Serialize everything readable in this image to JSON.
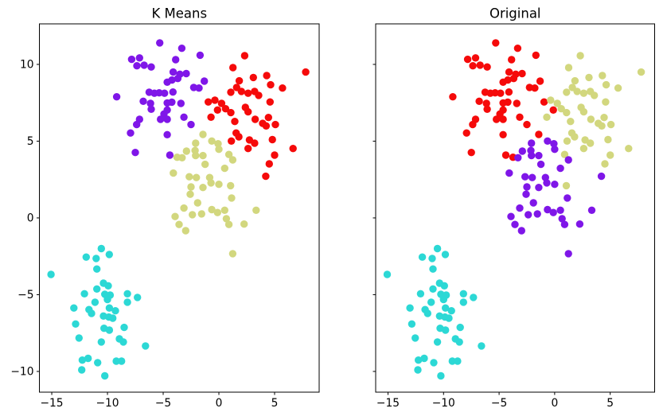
{
  "figure": {
    "background": "#ffffff",
    "axis_color": "#000000"
  },
  "chart_data": {
    "type": "scatter",
    "panels": [
      {
        "id": "kmeans",
        "title": "K Means",
        "color_key": "km",
        "show_y_labels": true
      },
      {
        "id": "original",
        "title": "Original",
        "color_key": "orig",
        "show_y_labels": false
      }
    ],
    "xlim": [
      -16.11,
      9.0
    ],
    "ylim": [
      -11.35,
      12.64
    ],
    "x_ticks": [
      {
        "v": -15,
        "label": "−15"
      },
      {
        "v": -10,
        "label": "−10"
      },
      {
        "v": -5,
        "label": "−5"
      },
      {
        "v": 0,
        "label": "0"
      },
      {
        "v": 5,
        "label": "5"
      }
    ],
    "y_ticks": [
      {
        "v": 10,
        "label": "10"
      },
      {
        "v": 5,
        "label": "5"
      },
      {
        "v": 0,
        "label": "0"
      },
      {
        "v": -5,
        "label": "−5"
      },
      {
        "v": -10,
        "label": "−10"
      }
    ],
    "grid": false,
    "legend": "none",
    "marker_radius": 4.7,
    "cluster_colors": {
      "p": "#7F16E8",
      "r": "#F50A0A",
      "k": "#D2D77E",
      "c": "#2CD8D5"
    },
    "cluster_names": {
      "p": "purple",
      "r": "red",
      "k": "khaki",
      "c": "cyan"
    },
    "points": [
      [
        -5.31,
        11.4,
        "p",
        "r"
      ],
      [
        -3.33,
        11.05,
        "p",
        "r"
      ],
      [
        -1.69,
        10.6,
        "p",
        "r"
      ],
      [
        -3.88,
        10.31,
        "p",
        "r"
      ],
      [
        -7.83,
        10.33,
        "p",
        "r"
      ],
      [
        -7.12,
        10.42,
        "p",
        "r"
      ],
      [
        -6.71,
        9.95,
        "p",
        "r"
      ],
      [
        -7.36,
        9.91,
        "p",
        "r"
      ],
      [
        -6.07,
        9.83,
        "p",
        "r"
      ],
      [
        -4.1,
        9.5,
        "p",
        "r"
      ],
      [
        -3.5,
        9.36,
        "p",
        "r"
      ],
      [
        -2.93,
        9.4,
        "p",
        "r"
      ],
      [
        -4.21,
        8.98,
        "p",
        "r"
      ],
      [
        -3.69,
        9.08,
        "p",
        "r"
      ],
      [
        -4.64,
        8.84,
        "p",
        "r"
      ],
      [
        -1.31,
        8.91,
        "p",
        "r"
      ],
      [
        -2.26,
        8.5,
        "p",
        "r"
      ],
      [
        -1.79,
        8.46,
        "p",
        "r"
      ],
      [
        -9.17,
        7.89,
        "p",
        "r"
      ],
      [
        -6.26,
        8.19,
        "p",
        "r"
      ],
      [
        -5.79,
        8.12,
        "p",
        "r"
      ],
      [
        -5.36,
        8.15,
        "p",
        "r"
      ],
      [
        -4.88,
        8.12,
        "p",
        "r"
      ],
      [
        -4.12,
        8.2,
        "p",
        "r"
      ],
      [
        -6.79,
        7.6,
        "p",
        "r"
      ],
      [
        -6.14,
        7.46,
        "p",
        "r"
      ],
      [
        -4.64,
        7.49,
        "p",
        "r"
      ],
      [
        -4.22,
        7.54,
        "p",
        "r"
      ],
      [
        -3.41,
        7.46,
        "p",
        "r"
      ],
      [
        -6.07,
        7.08,
        "p",
        "r"
      ],
      [
        -4.64,
        7.03,
        "p",
        "r"
      ],
      [
        -4.93,
        6.77,
        "p",
        "r"
      ],
      [
        -5.24,
        6.42,
        "p",
        "r"
      ],
      [
        -4.64,
        6.42,
        "p",
        "r"
      ],
      [
        -3.14,
        6.56,
        "p",
        "r"
      ],
      [
        -7.12,
        6.42,
        "p",
        "r"
      ],
      [
        -7.38,
        6.08,
        "p",
        "r"
      ],
      [
        -2.5,
        6.08,
        "p",
        "r"
      ],
      [
        -7.93,
        5.53,
        "p",
        "r"
      ],
      [
        -4.64,
        5.42,
        "p",
        "r"
      ],
      [
        -7.5,
        4.26,
        "p",
        "r"
      ],
      [
        -4.4,
        4.09,
        "p",
        "r"
      ],
      [
        2.31,
        10.57,
        "r",
        "k"
      ],
      [
        1.26,
        9.79,
        "r",
        "k"
      ],
      [
        7.79,
        9.5,
        "r",
        "k"
      ],
      [
        3.09,
        9.15,
        "r",
        "k"
      ],
      [
        4.29,
        9.27,
        "r",
        "k"
      ],
      [
        1.83,
        8.93,
        "r",
        "k"
      ],
      [
        4.64,
        8.67,
        "r",
        "k"
      ],
      [
        5.71,
        8.46,
        "r",
        "k"
      ],
      [
        1.59,
        8.5,
        "r",
        "k"
      ],
      [
        1.07,
        8.19,
        "r",
        "k"
      ],
      [
        2.02,
        8.24,
        "r",
        "k"
      ],
      [
        2.62,
        8.12,
        "r",
        "k"
      ],
      [
        3.21,
        8.24,
        "r",
        "k"
      ],
      [
        3.57,
        7.98,
        "r",
        "k"
      ],
      [
        -0.95,
        7.55,
        "r",
        "r"
      ],
      [
        -0.36,
        7.67,
        "r",
        "k"
      ],
      [
        0.24,
        7.46,
        "r",
        "k"
      ],
      [
        0.6,
        7.11,
        "r",
        "k"
      ],
      [
        -0.12,
        7.03,
        "r",
        "r"
      ],
      [
        1.07,
        6.86,
        "r",
        "k"
      ],
      [
        -0.71,
        6.56,
        "r",
        "k"
      ],
      [
        2.38,
        7.2,
        "r",
        "k"
      ],
      [
        2.62,
        6.91,
        "r",
        "k"
      ],
      [
        4.59,
        7.55,
        "r",
        "k"
      ],
      [
        4.45,
        6.54,
        "r",
        "k"
      ],
      [
        3.26,
        6.42,
        "r",
        "k"
      ],
      [
        1.43,
        6.28,
        "r",
        "k"
      ],
      [
        3.93,
        6.16,
        "r",
        "k"
      ],
      [
        4.24,
        5.99,
        "r",
        "k"
      ],
      [
        5.07,
        6.08,
        "r",
        "k"
      ],
      [
        1.55,
        5.53,
        "r",
        "k"
      ],
      [
        1.79,
        5.28,
        "r",
        "k"
      ],
      [
        1.12,
        5.01,
        "r",
        "k"
      ],
      [
        2.74,
        5.08,
        "r",
        "k"
      ],
      [
        3.21,
        4.87,
        "r",
        "k"
      ],
      [
        2.62,
        4.52,
        "r",
        "k"
      ],
      [
        4.8,
        5.1,
        "r",
        "k"
      ],
      [
        5.0,
        4.09,
        "r",
        "k"
      ],
      [
        6.66,
        4.52,
        "r",
        "k"
      ],
      [
        4.52,
        3.52,
        "r",
        "k"
      ],
      [
        4.21,
        2.71,
        "r",
        "p"
      ],
      [
        -1.43,
        5.44,
        "k",
        "r"
      ],
      [
        -0.64,
        5.01,
        "k",
        "p"
      ],
      [
        -0.07,
        4.83,
        "k",
        "p"
      ],
      [
        -2.09,
        4.87,
        "k",
        "p"
      ],
      [
        0.0,
        4.47,
        "k",
        "p"
      ],
      [
        -2.91,
        4.35,
        "k",
        "p"
      ],
      [
        -3.75,
        3.95,
        "k",
        "r"
      ],
      [
        -3.3,
        3.92,
        "k",
        "p"
      ],
      [
        -2.14,
        4.39,
        "k",
        "p"
      ],
      [
        -2.09,
        4.06,
        "k",
        "p"
      ],
      [
        -1.43,
        4.06,
        "k",
        "p"
      ],
      [
        0.9,
        4.13,
        "k",
        "k"
      ],
      [
        1.24,
        3.78,
        "k",
        "p"
      ],
      [
        -1.24,
        3.49,
        "k",
        "p"
      ],
      [
        0.52,
        3.23,
        "k",
        "p"
      ],
      [
        -4.09,
        2.92,
        "k",
        "p"
      ],
      [
        -2.66,
        2.68,
        "k",
        "p"
      ],
      [
        -2.02,
        2.63,
        "k",
        "p"
      ],
      [
        -0.83,
        2.63,
        "k",
        "p"
      ],
      [
        -0.71,
        2.28,
        "k",
        "p"
      ],
      [
        0.0,
        2.19,
        "k",
        "p"
      ],
      [
        1.05,
        2.1,
        "k",
        "k"
      ],
      [
        -2.5,
        2.02,
        "k",
        "p"
      ],
      [
        -1.43,
        1.98,
        "k",
        "p"
      ],
      [
        -2.57,
        1.54,
        "k",
        "p"
      ],
      [
        1.14,
        1.3,
        "k",
        "p"
      ],
      [
        -1.91,
        0.98,
        "k",
        "p"
      ],
      [
        -3.14,
        0.64,
        "k",
        "p"
      ],
      [
        -2.38,
        0.21,
        "k",
        "p"
      ],
      [
        -1.55,
        0.26,
        "k",
        "p"
      ],
      [
        -0.64,
        0.54,
        "k",
        "p"
      ],
      [
        -0.12,
        0.35,
        "k",
        "p"
      ],
      [
        0.52,
        0.5,
        "k",
        "p"
      ],
      [
        0.67,
        -0.05,
        "k",
        "p"
      ],
      [
        3.34,
        0.5,
        "k",
        "p"
      ],
      [
        -3.93,
        0.09,
        "k",
        "p"
      ],
      [
        -3.57,
        -0.43,
        "k",
        "p"
      ],
      [
        -2.98,
        -0.83,
        "k",
        "p"
      ],
      [
        0.9,
        -0.43,
        "k",
        "p"
      ],
      [
        2.26,
        -0.4,
        "k",
        "p"
      ],
      [
        1.24,
        -2.33,
        "k",
        "p"
      ],
      [
        -10.55,
        -2.0,
        "c",
        "c"
      ],
      [
        -9.84,
        -2.38,
        "c",
        "c"
      ],
      [
        -11.91,
        -2.55,
        "c",
        "c"
      ],
      [
        -11.02,
        -2.64,
        "c",
        "c"
      ],
      [
        -10.95,
        -3.33,
        "c",
        "c"
      ],
      [
        -15.07,
        -3.68,
        "c",
        "c"
      ],
      [
        -10.36,
        -4.25,
        "c",
        "c"
      ],
      [
        -9.93,
        -4.42,
        "c",
        "c"
      ],
      [
        -10.95,
        -4.63,
        "c",
        "c"
      ],
      [
        -12.07,
        -4.94,
        "c",
        "c"
      ],
      [
        -8.21,
        -4.94,
        "c",
        "c"
      ],
      [
        -7.31,
        -5.18,
        "c",
        "c"
      ],
      [
        -11.12,
        -5.49,
        "c",
        "c"
      ],
      [
        -10.24,
        -4.97,
        "c",
        "c"
      ],
      [
        -9.76,
        -5.03,
        "c",
        "c"
      ],
      [
        -10.0,
        -5.32,
        "c",
        "c"
      ],
      [
        -13.02,
        -5.87,
        "c",
        "c"
      ],
      [
        -11.66,
        -5.97,
        "c",
        "c"
      ],
      [
        -8.21,
        -5.49,
        "c",
        "c"
      ],
      [
        -9.83,
        -5.87,
        "c",
        "c"
      ],
      [
        -9.29,
        -6.05,
        "c",
        "c"
      ],
      [
        -11.43,
        -6.22,
        "c",
        "c"
      ],
      [
        -10.36,
        -6.39,
        "c",
        "c"
      ],
      [
        -9.88,
        -6.46,
        "c",
        "c"
      ],
      [
        -9.52,
        -6.53,
        "c",
        "c"
      ],
      [
        -12.86,
        -6.91,
        "c",
        "c"
      ],
      [
        -12.55,
        -7.82,
        "c",
        "c"
      ],
      [
        -10.31,
        -7.19,
        "c",
        "c"
      ],
      [
        -9.83,
        -7.31,
        "c",
        "c"
      ],
      [
        -10.55,
        -8.08,
        "c",
        "c"
      ],
      [
        -8.93,
        -7.88,
        "c",
        "c"
      ],
      [
        -8.5,
        -7.13,
        "c",
        "c"
      ],
      [
        -8.57,
        -8.08,
        "c",
        "c"
      ],
      [
        -6.59,
        -8.34,
        "c",
        "c"
      ],
      [
        -12.26,
        -9.26,
        "c",
        "c"
      ],
      [
        -11.74,
        -9.15,
        "c",
        "c"
      ],
      [
        -10.88,
        -9.43,
        "c",
        "c"
      ],
      [
        -9.21,
        -9.33,
        "c",
        "c"
      ],
      [
        -8.74,
        -9.33,
        "c",
        "c"
      ],
      [
        -12.31,
        -9.9,
        "c",
        "c"
      ],
      [
        -10.24,
        -10.29,
        "c",
        "c"
      ]
    ]
  }
}
